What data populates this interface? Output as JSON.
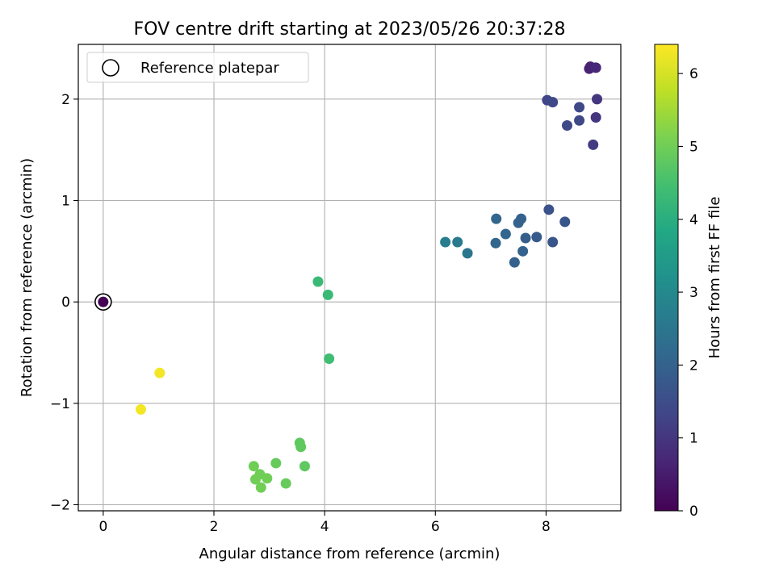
{
  "chart_data": {
    "type": "scatter",
    "title": "FOV centre drift starting at 2023/05/26 20:37:28",
    "xlabel": "Angular distance from reference (arcmin)",
    "ylabel": "Rotation from reference (arcmin)",
    "xlim": [
      -0.45,
      9.35
    ],
    "ylim": [
      -2.06,
      2.54
    ],
    "xticks": [
      0,
      2,
      4,
      6,
      8
    ],
    "xtick_labels": [
      "0",
      "2",
      "4",
      "6",
      "8"
    ],
    "yticks": [
      -2,
      -1,
      0,
      1,
      2
    ],
    "ytick_labels": [
      "−2",
      "−1",
      "0",
      "1",
      "2"
    ],
    "grid": true,
    "legend": {
      "placement": "top-left",
      "entries": [
        "Reference platepar"
      ]
    },
    "colorbar": {
      "label": "Hours from first FF file",
      "min": 0,
      "max": 6.4,
      "colormap": "viridis",
      "ticks": [
        0,
        1,
        2,
        3,
        4,
        5,
        6
      ],
      "tick_labels": [
        "0",
        "1",
        "2",
        "3",
        "4",
        "5",
        "6"
      ]
    },
    "reference": {
      "x": 0,
      "y": 0,
      "hours": 0
    },
    "series": [
      {
        "points": [
          {
            "x": 8.78,
            "y": 2.3,
            "hours": 0.6
          },
          {
            "x": 8.8,
            "y": 2.32,
            "hours": 0.6
          },
          {
            "x": 8.9,
            "y": 2.31,
            "hours": 0.7
          },
          {
            "x": 8.92,
            "y": 2.0,
            "hours": 1.0
          },
          {
            "x": 8.9,
            "y": 1.82,
            "hours": 1.0
          },
          {
            "x": 8.85,
            "y": 1.55,
            "hours": 1.1
          },
          {
            "x": 8.02,
            "y": 1.99,
            "hours": 1.35
          },
          {
            "x": 8.12,
            "y": 1.97,
            "hours": 1.4
          },
          {
            "x": 8.38,
            "y": 1.74,
            "hours": 1.4
          },
          {
            "x": 8.6,
            "y": 1.92,
            "hours": 1.4
          },
          {
            "x": 8.6,
            "y": 1.79,
            "hours": 1.4
          },
          {
            "x": 8.05,
            "y": 0.91,
            "hours": 1.6
          },
          {
            "x": 8.34,
            "y": 0.79,
            "hours": 1.7
          },
          {
            "x": 8.12,
            "y": 0.59,
            "hours": 1.7
          },
          {
            "x": 7.83,
            "y": 0.64,
            "hours": 1.8
          },
          {
            "x": 7.63,
            "y": 0.63,
            "hours": 1.9
          },
          {
            "x": 7.55,
            "y": 0.82,
            "hours": 2.0
          },
          {
            "x": 7.5,
            "y": 0.78,
            "hours": 2.0
          },
          {
            "x": 7.58,
            "y": 0.5,
            "hours": 2.0
          },
          {
            "x": 7.43,
            "y": 0.39,
            "hours": 2.0
          },
          {
            "x": 7.27,
            "y": 0.67,
            "hours": 2.1
          },
          {
            "x": 7.1,
            "y": 0.82,
            "hours": 2.1
          },
          {
            "x": 7.09,
            "y": 0.58,
            "hours": 2.1
          },
          {
            "x": 6.58,
            "y": 0.48,
            "hours": 2.5
          },
          {
            "x": 6.4,
            "y": 0.59,
            "hours": 2.6
          },
          {
            "x": 6.18,
            "y": 0.59,
            "hours": 2.7
          },
          {
            "x": 3.88,
            "y": 0.2,
            "hours": 4.3
          },
          {
            "x": 4.06,
            "y": 0.07,
            "hours": 4.3
          },
          {
            "x": 4.08,
            "y": -0.56,
            "hours": 4.4
          },
          {
            "x": 3.55,
            "y": -1.39,
            "hours": 4.8
          },
          {
            "x": 3.57,
            "y": -1.43,
            "hours": 4.8
          },
          {
            "x": 3.64,
            "y": -1.62,
            "hours": 4.8
          },
          {
            "x": 3.12,
            "y": -1.59,
            "hours": 4.9
          },
          {
            "x": 3.3,
            "y": -1.79,
            "hours": 4.9
          },
          {
            "x": 2.72,
            "y": -1.62,
            "hours": 5.0
          },
          {
            "x": 2.83,
            "y": -1.7,
            "hours": 5.0
          },
          {
            "x": 2.75,
            "y": -1.75,
            "hours": 5.0
          },
          {
            "x": 2.96,
            "y": -1.74,
            "hours": 5.0
          },
          {
            "x": 2.85,
            "y": -1.83,
            "hours": 5.0
          },
          {
            "x": 1.02,
            "y": -0.7,
            "hours": 6.3
          },
          {
            "x": 0.68,
            "y": -1.06,
            "hours": 6.3
          }
        ]
      }
    ]
  }
}
